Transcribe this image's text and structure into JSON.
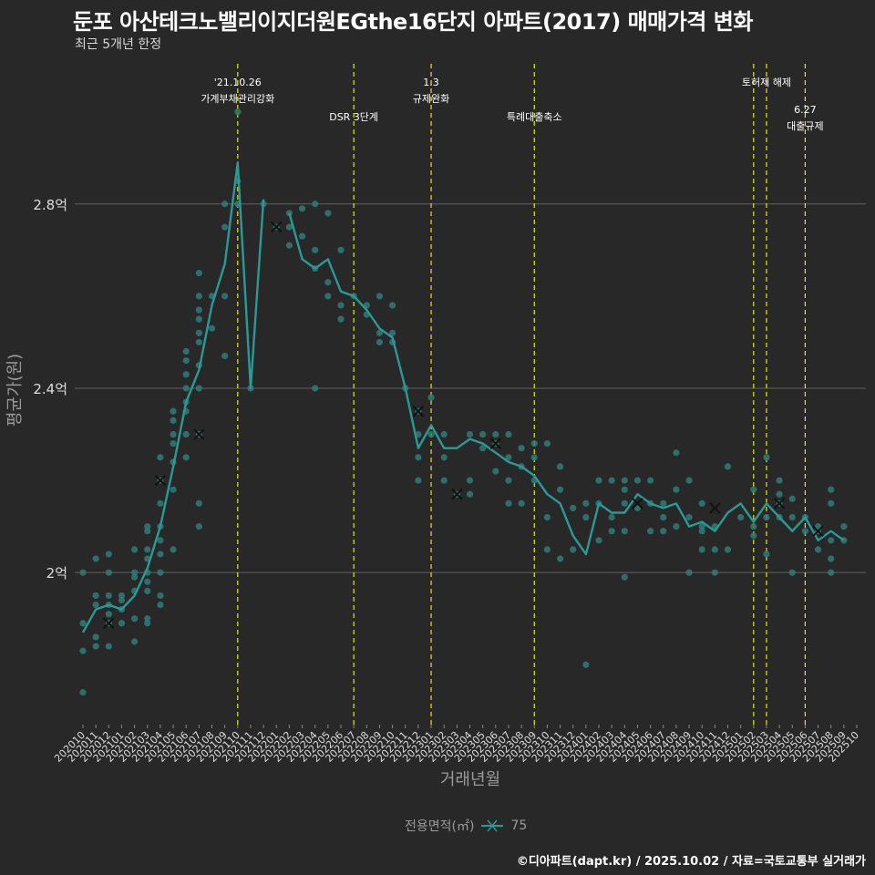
{
  "title": "둔포 아산테크노밸리이지더원EGthe16단지 아파트(2017) 매매가격 변화",
  "subtitle": "최근 5개년 한정",
  "caption": "©디아파트(dapt.kr) / 2025.10.02 / 자료=국토교통부 실거래가",
  "legend": {
    "title": "전용면적(㎡)",
    "label": "75"
  },
  "colors": {
    "background": "#282828",
    "grid": "#606060",
    "line": "#2a9a96",
    "points": "#2e7b78",
    "vline": "#e8e800",
    "text": "#dddddd",
    "axis_title": "#9a9a9a"
  },
  "chart_data": {
    "type": "line",
    "title": "둔포 아산테크노밸리이지더원EGthe16단지 아파트(2017) 매매가격 변화",
    "xlabel": "거래년월",
    "ylabel": "평균가(원)",
    "ylim": [
      1.67,
      3.12
    ],
    "yticks": [
      2.0,
      2.4,
      2.8
    ],
    "ytick_labels": [
      "2억",
      "2.4억",
      "2.8억"
    ],
    "grid": true,
    "legend_position": "bottom",
    "categories": [
      "202010",
      "202011",
      "202012",
      "202101",
      "202102",
      "202103",
      "202104",
      "202105",
      "202106",
      "202107",
      "202108",
      "202109",
      "202110",
      "202111",
      "202112",
      "202201",
      "202202",
      "202203",
      "202204",
      "202205",
      "202206",
      "202207",
      "202208",
      "202209",
      "202210",
      "202211",
      "202212",
      "202301",
      "202302",
      "202303",
      "202304",
      "202305",
      "202306",
      "202307",
      "202308",
      "202309",
      "202310",
      "202311",
      "202312",
      "202401",
      "202402",
      "202403",
      "202404",
      "202405",
      "202406",
      "202407",
      "202408",
      "202409",
      "202410",
      "202411",
      "202412",
      "202501",
      "202502",
      "202503",
      "202504",
      "202505",
      "202506",
      "202507",
      "202508",
      "202509",
      "202510"
    ],
    "series": [
      {
        "name": "75",
        "values": [
          1.87,
          1.92,
          1.93,
          1.92,
          1.95,
          2.01,
          2.1,
          2.23,
          2.37,
          2.44,
          2.58,
          2.67,
          2.89,
          2.4,
          2.81,
          null,
          2.78,
          2.68,
          2.66,
          2.68,
          2.61,
          2.6,
          2.57,
          2.53,
          2.51,
          2.4,
          2.27,
          2.32,
          2.27,
          2.27,
          2.29,
          2.28,
          2.26,
          2.24,
          2.23,
          2.21,
          2.17,
          2.15,
          2.08,
          2.04,
          2.15,
          2.13,
          2.13,
          2.17,
          2.15,
          2.14,
          2.15,
          2.1,
          2.11,
          2.09,
          2.13,
          2.15,
          2.11,
          2.15,
          2.12,
          2.09,
          2.12,
          2.07,
          2.09,
          2.07,
          null
        ]
      }
    ],
    "cross_markers": [
      {
        "x": "202012",
        "y": 1.89
      },
      {
        "x": "202104",
        "y": 2.2
      },
      {
        "x": "202107",
        "y": 2.3
      },
      {
        "x": "202201",
        "y": 2.75
      },
      {
        "x": "202212",
        "y": 2.35
      },
      {
        "x": "202303",
        "y": 2.17
      },
      {
        "x": "202306",
        "y": 2.28
      },
      {
        "x": "202405",
        "y": 2.15
      },
      {
        "x": "202411",
        "y": 2.14
      },
      {
        "x": "202504",
        "y": 2.15
      },
      {
        "x": "202507",
        "y": 2.09
      }
    ],
    "scatter": [
      {
        "x": "202010",
        "y": 1.74
      },
      {
        "x": "202010",
        "y": 1.83
      },
      {
        "x": "202010",
        "y": 1.89
      },
      {
        "x": "202010",
        "y": 2.0
      },
      {
        "x": "202011",
        "y": 1.84
      },
      {
        "x": "202011",
        "y": 1.86
      },
      {
        "x": "202011",
        "y": 1.93
      },
      {
        "x": "202011",
        "y": 1.95
      },
      {
        "x": "202011",
        "y": 2.03
      },
      {
        "x": "202012",
        "y": 1.84
      },
      {
        "x": "202012",
        "y": 1.89
      },
      {
        "x": "202012",
        "y": 1.91
      },
      {
        "x": "202012",
        "y": 1.93
      },
      {
        "x": "202012",
        "y": 1.95
      },
      {
        "x": "202012",
        "y": 2.0
      },
      {
        "x": "202012",
        "y": 2.04
      },
      {
        "x": "202101",
        "y": 1.89
      },
      {
        "x": "202101",
        "y": 1.92
      },
      {
        "x": "202101",
        "y": 1.94
      },
      {
        "x": "202101",
        "y": 1.95
      },
      {
        "x": "202102",
        "y": 1.85
      },
      {
        "x": "202102",
        "y": 1.9
      },
      {
        "x": "202102",
        "y": 1.96
      },
      {
        "x": "202102",
        "y": 1.99
      },
      {
        "x": "202102",
        "y": 2.0
      },
      {
        "x": "202102",
        "y": 2.05
      },
      {
        "x": "202103",
        "y": 1.89
      },
      {
        "x": "202103",
        "y": 1.9
      },
      {
        "x": "202103",
        "y": 1.96
      },
      {
        "x": "202103",
        "y": 1.98
      },
      {
        "x": "202103",
        "y": 2.0
      },
      {
        "x": "202103",
        "y": 2.03
      },
      {
        "x": "202103",
        "y": 2.05
      },
      {
        "x": "202103",
        "y": 2.09
      },
      {
        "x": "202103",
        "y": 2.1
      },
      {
        "x": "202104",
        "y": 1.93
      },
      {
        "x": "202104",
        "y": 1.95
      },
      {
        "x": "202104",
        "y": 2.0
      },
      {
        "x": "202104",
        "y": 2.04
      },
      {
        "x": "202104",
        "y": 2.07
      },
      {
        "x": "202104",
        "y": 2.1
      },
      {
        "x": "202104",
        "y": 2.15
      },
      {
        "x": "202104",
        "y": 2.2
      },
      {
        "x": "202104",
        "y": 2.25
      },
      {
        "x": "202105",
        "y": 2.05
      },
      {
        "x": "202105",
        "y": 2.18
      },
      {
        "x": "202105",
        "y": 2.24
      },
      {
        "x": "202105",
        "y": 2.28
      },
      {
        "x": "202105",
        "y": 2.3
      },
      {
        "x": "202105",
        "y": 2.33
      },
      {
        "x": "202105",
        "y": 2.35
      },
      {
        "x": "202106",
        "y": 2.25
      },
      {
        "x": "202106",
        "y": 2.3
      },
      {
        "x": "202106",
        "y": 2.35
      },
      {
        "x": "202106",
        "y": 2.37
      },
      {
        "x": "202106",
        "y": 2.4
      },
      {
        "x": "202106",
        "y": 2.43
      },
      {
        "x": "202106",
        "y": 2.46
      },
      {
        "x": "202106",
        "y": 2.48
      },
      {
        "x": "202107",
        "y": 2.1
      },
      {
        "x": "202107",
        "y": 2.15
      },
      {
        "x": "202107",
        "y": 2.3
      },
      {
        "x": "202107",
        "y": 2.4
      },
      {
        "x": "202107",
        "y": 2.45
      },
      {
        "x": "202107",
        "y": 2.5
      },
      {
        "x": "202107",
        "y": 2.52
      },
      {
        "x": "202107",
        "y": 2.55
      },
      {
        "x": "202107",
        "y": 2.57
      },
      {
        "x": "202107",
        "y": 2.6
      },
      {
        "x": "202107",
        "y": 2.65
      },
      {
        "x": "202108",
        "y": 2.53
      },
      {
        "x": "202108",
        "y": 2.6
      },
      {
        "x": "202109",
        "y": 2.47
      },
      {
        "x": "202109",
        "y": 2.6
      },
      {
        "x": "202109",
        "y": 2.75
      },
      {
        "x": "202109",
        "y": 2.8
      },
      {
        "x": "202110",
        "y": 2.8
      },
      {
        "x": "202110",
        "y": 2.85
      },
      {
        "x": "202110",
        "y": 3.0
      },
      {
        "x": "202111",
        "y": 2.4
      },
      {
        "x": "202112",
        "y": 2.8
      },
      {
        "x": "202201",
        "y": 2.75
      },
      {
        "x": "202202",
        "y": 2.71
      },
      {
        "x": "202202",
        "y": 2.75
      },
      {
        "x": "202202",
        "y": 2.78
      },
      {
        "x": "202203",
        "y": 2.73
      },
      {
        "x": "202203",
        "y": 2.79
      },
      {
        "x": "202204",
        "y": 2.4
      },
      {
        "x": "202204",
        "y": 2.66
      },
      {
        "x": "202204",
        "y": 2.7
      },
      {
        "x": "202204",
        "y": 2.8
      },
      {
        "x": "202205",
        "y": 2.6
      },
      {
        "x": "202205",
        "y": 2.63
      },
      {
        "x": "202205",
        "y": 2.78
      },
      {
        "x": "202206",
        "y": 2.55
      },
      {
        "x": "202206",
        "y": 2.58
      },
      {
        "x": "202206",
        "y": 2.7
      },
      {
        "x": "202207",
        "y": 2.6
      },
      {
        "x": "202208",
        "y": 2.56
      },
      {
        "x": "202208",
        "y": 2.58
      },
      {
        "x": "202209",
        "y": 2.5
      },
      {
        "x": "202209",
        "y": 2.52
      },
      {
        "x": "202209",
        "y": 2.6
      },
      {
        "x": "202210",
        "y": 2.5
      },
      {
        "x": "202210",
        "y": 2.52
      },
      {
        "x": "202210",
        "y": 2.58
      },
      {
        "x": "202211",
        "y": 2.4
      },
      {
        "x": "202212",
        "y": 2.2
      },
      {
        "x": "202212",
        "y": 2.25
      },
      {
        "x": "202212",
        "y": 2.3
      },
      {
        "x": "202212",
        "y": 2.35
      },
      {
        "x": "202301",
        "y": 2.3
      },
      {
        "x": "202301",
        "y": 2.38
      },
      {
        "x": "202302",
        "y": 2.2
      },
      {
        "x": "202302",
        "y": 2.25
      },
      {
        "x": "202302",
        "y": 2.3
      },
      {
        "x": "202303",
        "y": 2.17
      },
      {
        "x": "202304",
        "y": 2.17
      },
      {
        "x": "202304",
        "y": 2.2
      },
      {
        "x": "202304",
        "y": 2.3
      },
      {
        "x": "202305",
        "y": 2.27
      },
      {
        "x": "202305",
        "y": 2.3
      },
      {
        "x": "202306",
        "y": 2.22
      },
      {
        "x": "202306",
        "y": 2.28
      },
      {
        "x": "202306",
        "y": 2.3
      },
      {
        "x": "202307",
        "y": 2.15
      },
      {
        "x": "202307",
        "y": 2.2
      },
      {
        "x": "202307",
        "y": 2.25
      },
      {
        "x": "202307",
        "y": 2.3
      },
      {
        "x": "202308",
        "y": 2.15
      },
      {
        "x": "202308",
        "y": 2.23
      },
      {
        "x": "202308",
        "y": 2.27
      },
      {
        "x": "202309",
        "y": 2.2
      },
      {
        "x": "202309",
        "y": 2.25
      },
      {
        "x": "202309",
        "y": 2.28
      },
      {
        "x": "202310",
        "y": 2.05
      },
      {
        "x": "202310",
        "y": 2.12
      },
      {
        "x": "202310",
        "y": 2.28
      },
      {
        "x": "202311",
        "y": 2.03
      },
      {
        "x": "202311",
        "y": 2.18
      },
      {
        "x": "202311",
        "y": 2.23
      },
      {
        "x": "202312",
        "y": 2.05
      },
      {
        "x": "202312",
        "y": 2.14
      },
      {
        "x": "202401",
        "y": 1.8
      },
      {
        "x": "202401",
        "y": 2.12
      },
      {
        "x": "202401",
        "y": 2.15
      },
      {
        "x": "202402",
        "y": 2.07
      },
      {
        "x": "202402",
        "y": 2.15
      },
      {
        "x": "202402",
        "y": 2.2
      },
      {
        "x": "202403",
        "y": 2.09
      },
      {
        "x": "202403",
        "y": 2.12
      },
      {
        "x": "202403",
        "y": 2.2
      },
      {
        "x": "202404",
        "y": 1.99
      },
      {
        "x": "202404",
        "y": 2.09
      },
      {
        "x": "202404",
        "y": 2.15
      },
      {
        "x": "202404",
        "y": 2.18
      },
      {
        "x": "202404",
        "y": 2.2
      },
      {
        "x": "202405",
        "y": 2.14
      },
      {
        "x": "202405",
        "y": 2.2
      },
      {
        "x": "202406",
        "y": 2.09
      },
      {
        "x": "202406",
        "y": 2.15
      },
      {
        "x": "202406",
        "y": 2.2
      },
      {
        "x": "202407",
        "y": 2.09
      },
      {
        "x": "202407",
        "y": 2.12
      },
      {
        "x": "202407",
        "y": 2.15
      },
      {
        "x": "202408",
        "y": 2.1
      },
      {
        "x": "202408",
        "y": 2.18
      },
      {
        "x": "202408",
        "y": 2.26
      },
      {
        "x": "202409",
        "y": 2.0
      },
      {
        "x": "202409",
        "y": 2.12
      },
      {
        "x": "202409",
        "y": 2.2
      },
      {
        "x": "202410",
        "y": 2.05
      },
      {
        "x": "202410",
        "y": 2.09
      },
      {
        "x": "202410",
        "y": 2.1
      },
      {
        "x": "202410",
        "y": 2.15
      },
      {
        "x": "202411",
        "y": 2.0
      },
      {
        "x": "202411",
        "y": 2.05
      },
      {
        "x": "202411",
        "y": 2.1
      },
      {
        "x": "202412",
        "y": 2.05
      },
      {
        "x": "202412",
        "y": 2.23
      },
      {
        "x": "202501",
        "y": 2.12
      },
      {
        "x": "202502",
        "y": 2.08
      },
      {
        "x": "202502",
        "y": 2.1
      },
      {
        "x": "202502",
        "y": 2.18
      },
      {
        "x": "202503",
        "y": 2.04
      },
      {
        "x": "202503",
        "y": 2.12
      },
      {
        "x": "202503",
        "y": 2.25
      },
      {
        "x": "202504",
        "y": 2.12
      },
      {
        "x": "202504",
        "y": 2.15
      },
      {
        "x": "202504",
        "y": 2.17
      },
      {
        "x": "202504",
        "y": 2.2
      },
      {
        "x": "202505",
        "y": 2.0
      },
      {
        "x": "202505",
        "y": 2.12
      },
      {
        "x": "202505",
        "y": 2.16
      },
      {
        "x": "202506",
        "y": 2.09
      },
      {
        "x": "202506",
        "y": 2.12
      },
      {
        "x": "202507",
        "y": 2.05
      },
      {
        "x": "202507",
        "y": 2.09
      },
      {
        "x": "202507",
        "y": 2.1
      },
      {
        "x": "202508",
        "y": 2.0
      },
      {
        "x": "202508",
        "y": 2.03
      },
      {
        "x": "202508",
        "y": 2.07
      },
      {
        "x": "202508",
        "y": 2.15
      },
      {
        "x": "202508",
        "y": 2.18
      },
      {
        "x": "202509",
        "y": 2.07
      },
      {
        "x": "202509",
        "y": 2.1
      }
    ],
    "events": [
      {
        "x": "202110",
        "lines": [
          "'21.10.26",
          "가계부채관리강화"
        ],
        "row": 0
      },
      {
        "x": "202207",
        "lines": [
          "DSR 3단계"
        ],
        "row": 1
      },
      {
        "x": "202301",
        "lines": [
          "1.3",
          "규제완화"
        ],
        "row": 0
      },
      {
        "x": "202309",
        "lines": [
          "특례대출축소"
        ],
        "row": 1
      },
      {
        "x": "202502",
        "lines": [],
        "row": 0
      },
      {
        "x": "202503",
        "lines": [
          "토허제 해제"
        ],
        "row": 0
      },
      {
        "x": "202506",
        "lines": [
          "6.27",
          "대출규제"
        ],
        "row": 2
      }
    ]
  }
}
